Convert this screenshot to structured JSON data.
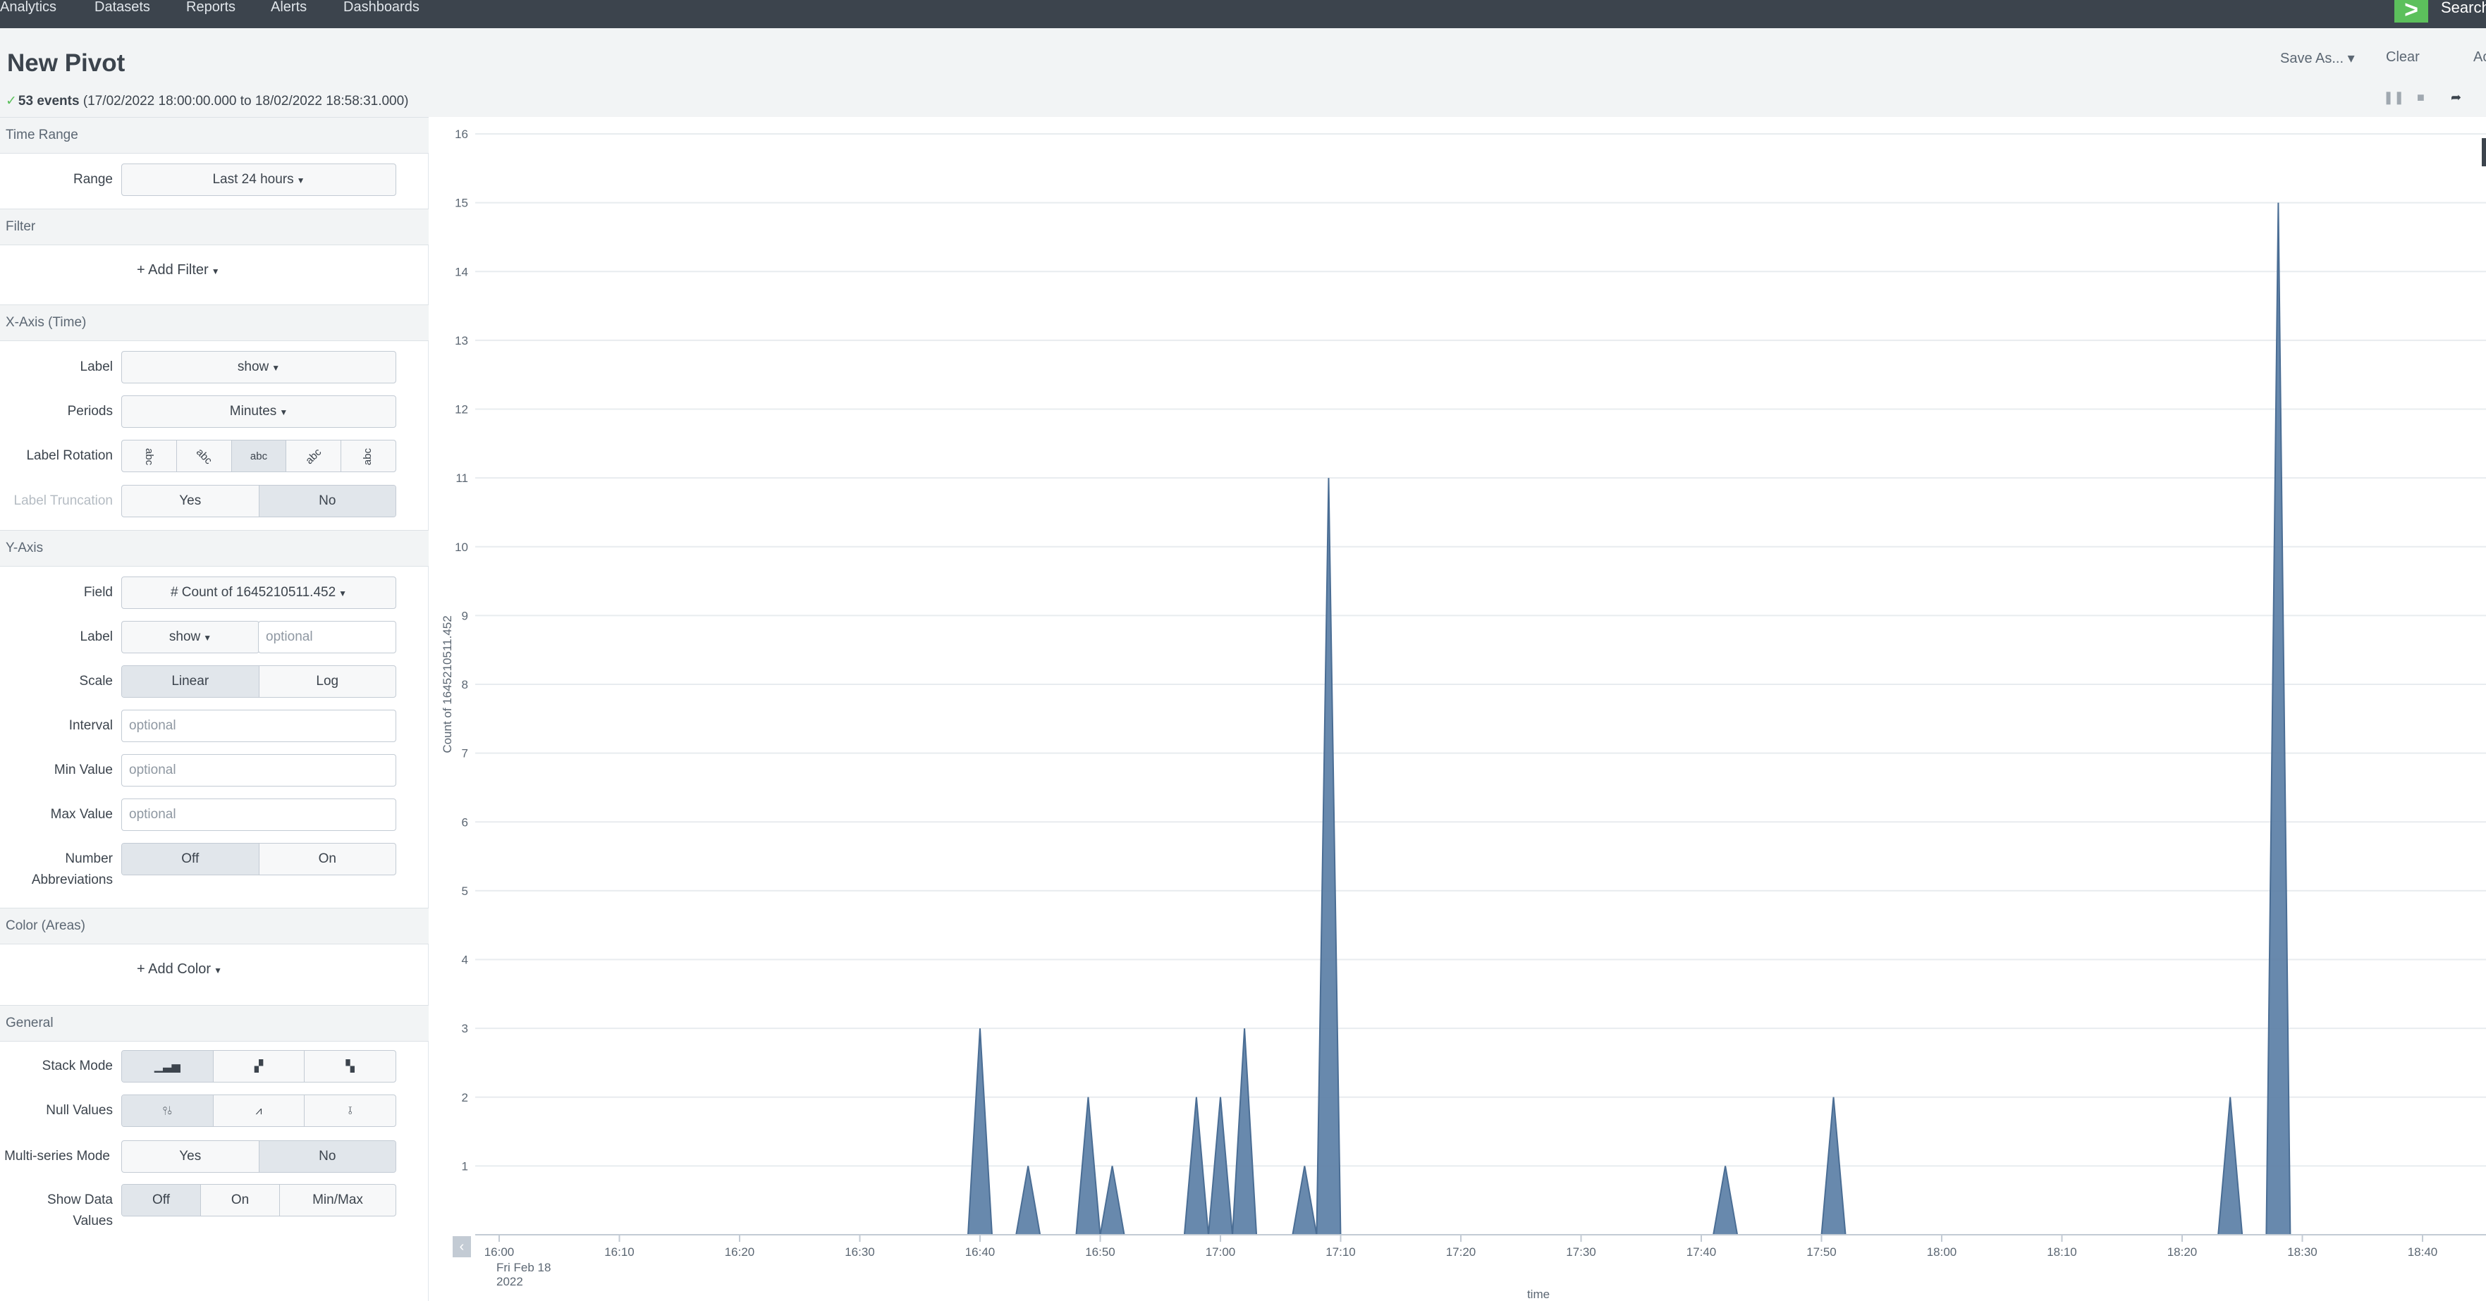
{
  "topnav": {
    "items": [
      "Analytics",
      "Datasets",
      "Reports",
      "Alerts",
      "Dashboards"
    ],
    "search_label": "Search",
    "search_icon": ">"
  },
  "header": {
    "title": "New Pivot",
    "save_as": "Save As... ▾",
    "clear": "Clear",
    "accel": "Ac",
    "status_count": "53 events",
    "status_range": "(17/02/2022 18:00:00.000 to 18/02/2022 18:58:31.000)",
    "job_icons": [
      "pause-icon",
      "stop-icon",
      "share-icon"
    ]
  },
  "panel": {
    "time_range": {
      "title": "Time Range",
      "range_label": "Range",
      "range_value": "Last 24 hours"
    },
    "filter": {
      "title": "Filter",
      "add_label": "+ Add Filter"
    },
    "x_axis": {
      "title": "X-Axis (Time)",
      "label_label": "Label",
      "label_value": "show",
      "periods_label": "Periods",
      "periods_value": "Minutes",
      "rotation_label": "Label Rotation",
      "rotation_options": [
        "abc",
        "abc",
        "abc",
        "abc",
        "abc"
      ],
      "rotation_selected": 2,
      "truncation_label": "Label Truncation",
      "truncation_options": [
        "Yes",
        "No"
      ],
      "truncation_selected": 1
    },
    "y_axis": {
      "title": "Y-Axis",
      "field_label": "Field",
      "field_value": "# Count of 1645210511.452",
      "label_label": "Label",
      "label_value": "show",
      "label_placeholder": "optional",
      "scale_label": "Scale",
      "scale_options": [
        "Linear",
        "Log"
      ],
      "scale_selected": 0,
      "interval_label": "Interval",
      "interval_placeholder": "optional",
      "min_label": "Min Value",
      "min_placeholder": "optional",
      "max_label": "Max Value",
      "max_placeholder": "optional",
      "abbrev_label_1": "Number",
      "abbrev_label_2": "Abbreviations",
      "abbrev_options": [
        "Off",
        "On"
      ],
      "abbrev_selected": 0
    },
    "color": {
      "title": "Color (Areas)",
      "add_label": "+ Add Color"
    },
    "general": {
      "title": "General",
      "stack_label": "Stack Mode",
      "stack_icons": [
        "stacked-bar-icon",
        "stacked-icon",
        "stacked-100-icon"
      ],
      "null_label": "Null Values",
      "null_icons": [
        "gaps-icon",
        "zero-icon",
        "connect-icon"
      ],
      "multi_label": "Multi-series Mode",
      "multi_options": [
        "Yes",
        "No"
      ],
      "multi_selected": 1,
      "show_label_1": "Show Data",
      "show_label_2": "Values",
      "show_options": [
        "Off",
        "On",
        "Min/Max"
      ],
      "show_selected": 0
    }
  },
  "chart_data": {
    "type": "area",
    "xlabel": "time",
    "ylabel": "Count of 1645210511.452",
    "ylim": [
      0,
      16
    ],
    "yticks": [
      1,
      2,
      3,
      4,
      5,
      6,
      7,
      8,
      9,
      10,
      11,
      12,
      13,
      14,
      15,
      16
    ],
    "xlim_minutes": [
      0,
      165
    ],
    "xticks": [
      "16:00",
      "16:10",
      "16:20",
      "16:30",
      "16:40",
      "16:50",
      "17:00",
      "17:10",
      "17:20",
      "17:30",
      "17:40",
      "17:50",
      "18:00",
      "18:10",
      "18:20",
      "18:30",
      "18:40"
    ],
    "first_tick_sub": [
      "Fri Feb 18",
      "2022"
    ],
    "color": "#5b7fa6",
    "spikes": [
      {
        "x": "16:40",
        "y": 3
      },
      {
        "x": "16:44",
        "y": 1
      },
      {
        "x": "16:49",
        "y": 2
      },
      {
        "x": "16:51",
        "y": 1
      },
      {
        "x": "16:58",
        "y": 2
      },
      {
        "x": "17:00",
        "y": 2
      },
      {
        "x": "17:02",
        "y": 3
      },
      {
        "x": "17:07",
        "y": 1
      },
      {
        "x": "17:09",
        "y": 11
      },
      {
        "x": "17:42",
        "y": 1
      },
      {
        "x": "17:51",
        "y": 2
      },
      {
        "x": "18:24",
        "y": 2
      },
      {
        "x": "18:28",
        "y": 15
      }
    ]
  }
}
